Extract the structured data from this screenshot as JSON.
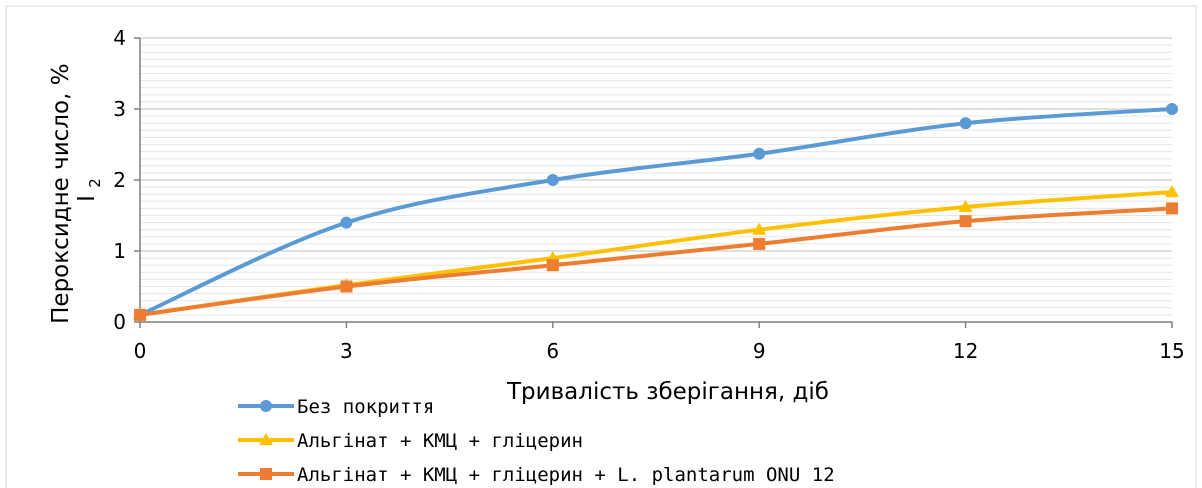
{
  "chart_data": {
    "type": "line",
    "title": "",
    "xlabel": "Тривалість зберігання, діб",
    "ylabel": "Пероксидне число, % I",
    "ylabel_parts": {
      "main": "Пероксидне число, %",
      "element": "I",
      "subscript": "2"
    },
    "x": [
      0,
      3,
      6,
      9,
      12,
      15
    ],
    "xlim": [
      0,
      15
    ],
    "ylim": [
      0,
      4
    ],
    "x_ticks": [
      "0",
      "3",
      "6",
      "9",
      "12",
      "15"
    ],
    "y_ticks": [
      "0",
      "1",
      "2",
      "3",
      "4"
    ],
    "grid": true,
    "legend_position": "bottom-left",
    "series": [
      {
        "name": "Без покриття",
        "color": "#5b9bd5",
        "marker": "circle",
        "values": [
          0.1,
          1.4,
          2.0,
          2.37,
          2.8,
          3.0
        ]
      },
      {
        "name": "Альгінат + КМЦ + гліцерин",
        "color": "#ffc000",
        "marker": "triangle",
        "values": [
          0.1,
          0.52,
          0.9,
          1.3,
          1.62,
          1.83
        ]
      },
      {
        "name": "Альгінат + КМЦ + гліцерин + L. plantarum ONU 12",
        "color": "#ed7d31",
        "marker": "square",
        "values": [
          0.1,
          0.5,
          0.8,
          1.1,
          1.42,
          1.6
        ]
      }
    ]
  }
}
